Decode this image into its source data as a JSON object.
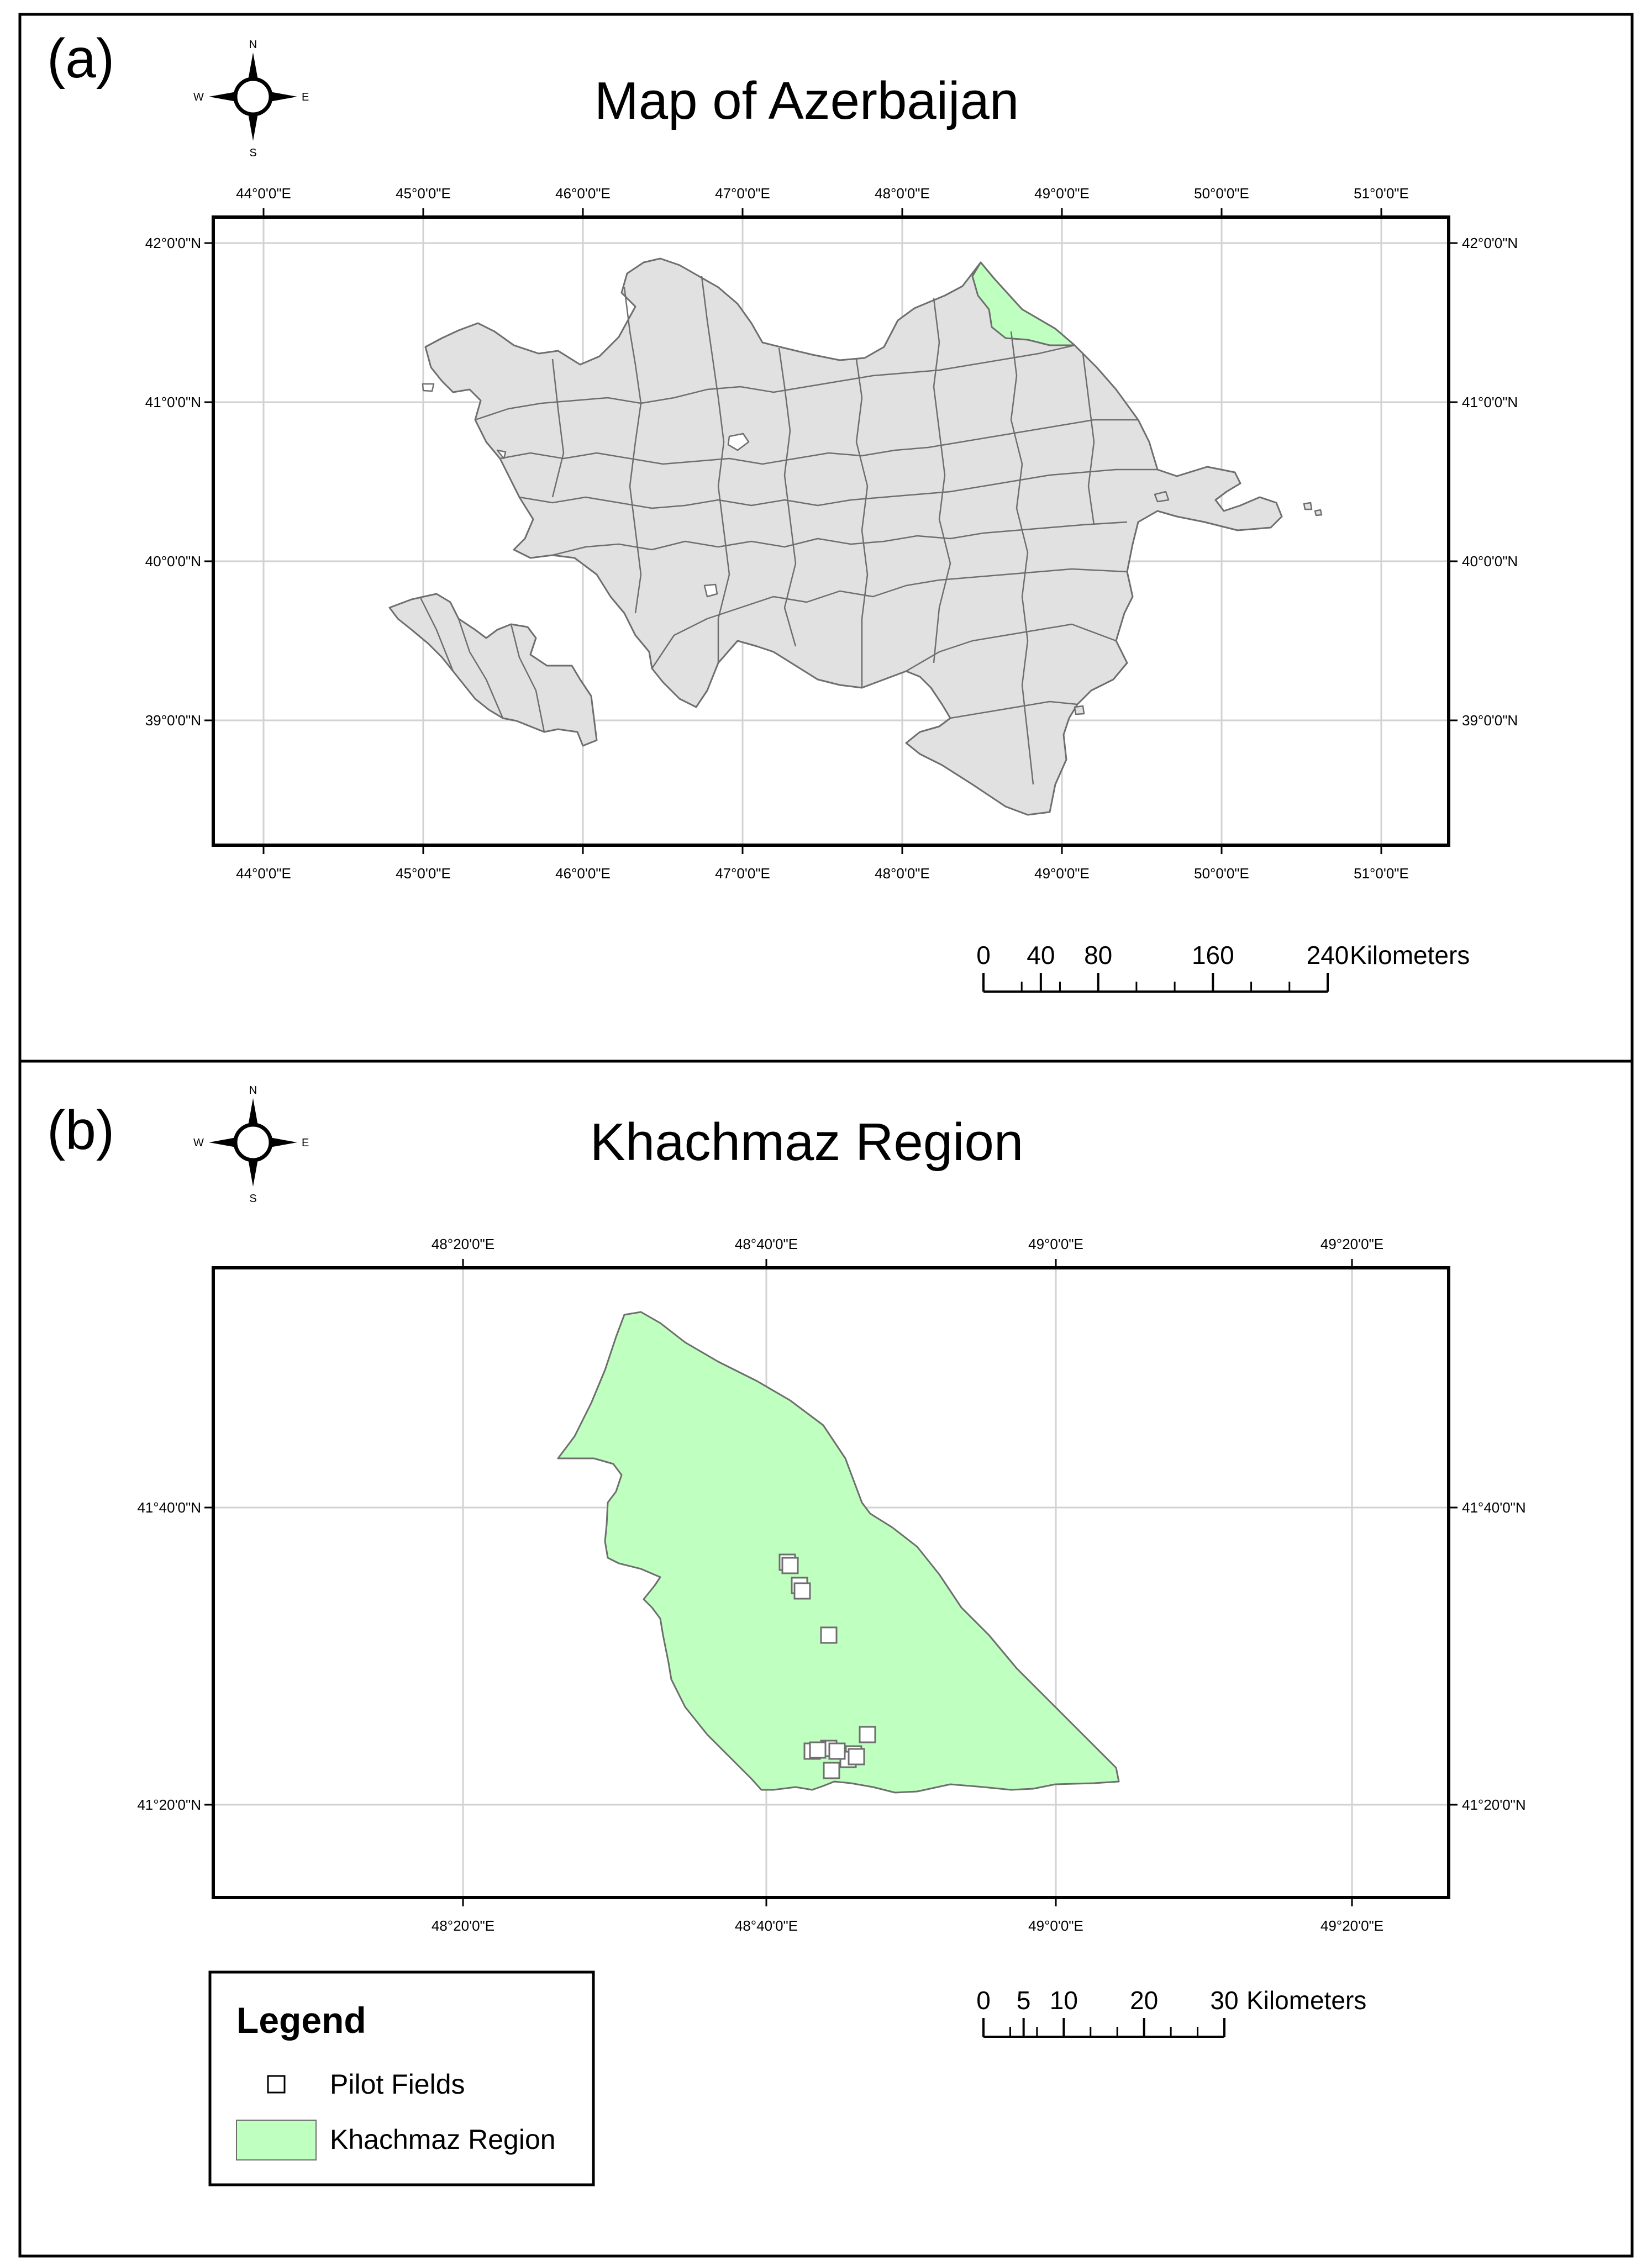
{
  "panel_a": {
    "label": "(a)",
    "title": "Map of Azerbaijan",
    "compass": {
      "n": "N",
      "s": "S",
      "e": "E",
      "w": "W"
    },
    "lon_ticks": [
      "44°0'0\"E",
      "45°0'0\"E",
      "46°0'0\"E",
      "47°0'0\"E",
      "48°0'0\"E",
      "49°0'0\"E",
      "50°0'0\"E",
      "51°0'0\"E"
    ],
    "lat_ticks": [
      "42°0'0\"N",
      "41°0'0\"N",
      "40°0'0\"N",
      "39°0'0\"N"
    ],
    "scale_bar": {
      "labels": [
        "0",
        "40",
        "80",
        "160",
        "240"
      ],
      "unit": "Kilometers"
    },
    "colors": {
      "country_fill": "#e1e1e1",
      "highlight_fill": "#bfffbf",
      "outline": "#6e6e6e",
      "grid": "#d2d2d2"
    }
  },
  "panel_b": {
    "label": "(b)",
    "title": "Khachmaz Region",
    "compass": {
      "n": "N",
      "s": "S",
      "e": "E",
      "w": "W"
    },
    "lon_ticks": [
      "48°20'0\"E",
      "48°40'0\"E",
      "49°0'0\"E",
      "49°20'0\"E"
    ],
    "lat_ticks": [
      "41°40'0\"N",
      "41°20'0\"N"
    ],
    "scale_bar": {
      "labels": [
        "0",
        "5",
        "10",
        "20",
        "30"
      ],
      "unit": "Kilometers"
    },
    "pilot_field_count": 14,
    "colors": {
      "region_fill": "#bfffbf",
      "outline": "#6e6e6e",
      "field_fill": "#ffffff"
    }
  },
  "legend": {
    "title": "Legend",
    "items": [
      {
        "label": "Pilot Fields",
        "symbol": "square-outline"
      },
      {
        "label": "Khachmaz Region",
        "symbol": "green-fill",
        "color": "#bfffbf"
      }
    ]
  }
}
